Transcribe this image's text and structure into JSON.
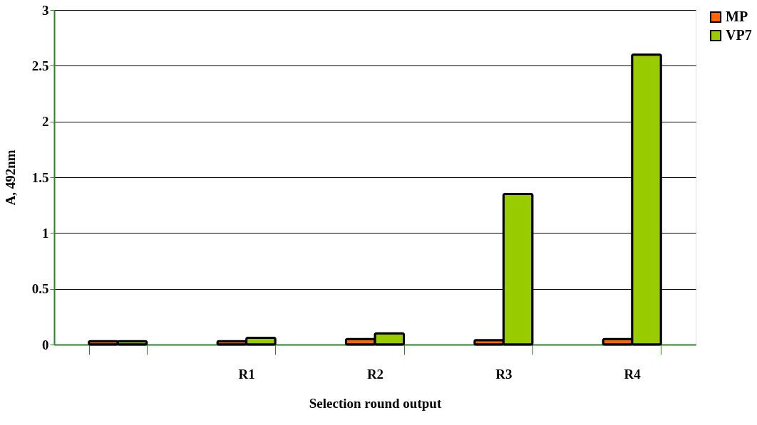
{
  "chart_data": {
    "type": "bar",
    "xlabel": "Selection round output",
    "ylabel": "A, 492nm",
    "categories": [
      null,
      "R1",
      "R2",
      "R3",
      "R4"
    ],
    "series": [
      {
        "name": "MP",
        "color": "#ff6600",
        "values": [
          0.03,
          0.03,
          0.05,
          0.04,
          0.05
        ]
      },
      {
        "name": "VP7",
        "color": "#99cc00",
        "values": [
          0.03,
          0.06,
          0.1,
          1.35,
          2.6
        ]
      }
    ],
    "ylim": [
      0,
      3
    ],
    "yticks": [
      0,
      0.5,
      1,
      1.5,
      2,
      2.5,
      3
    ],
    "grid": "y",
    "legend": "right"
  }
}
